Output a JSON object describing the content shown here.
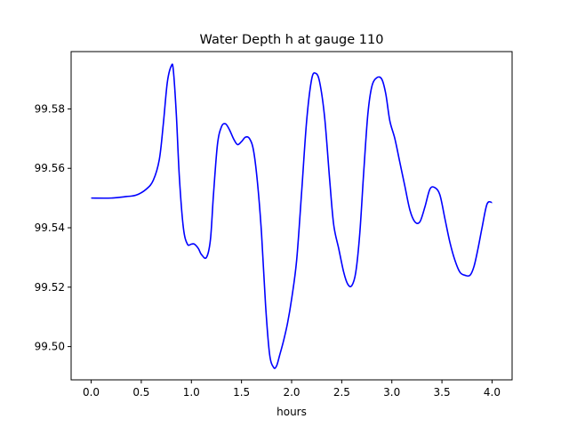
{
  "chart_data": {
    "type": "line",
    "title": "Water Depth h at gauge 110",
    "xlabel": "hours",
    "ylabel": "",
    "xlim": [
      -0.2,
      4.2
    ],
    "ylim": [
      99.4888,
      99.5993
    ],
    "x_ticks": [
      0.0,
      0.5,
      1.0,
      1.5,
      2.0,
      2.5,
      3.0,
      3.5,
      4.0
    ],
    "x_tick_labels": [
      "0.0",
      "0.5",
      "1.0",
      "1.5",
      "2.0",
      "2.5",
      "3.0",
      "3.5",
      "4.0"
    ],
    "y_ticks": [
      99.5,
      99.52,
      99.54,
      99.56,
      99.58
    ],
    "y_tick_labels": [
      "99.50",
      "99.52",
      "99.54",
      "99.56",
      "99.58"
    ],
    "grid": false,
    "series": [
      {
        "color": "#0000ff",
        "x": [
          0.0,
          0.2,
          0.35,
          0.45,
          0.55,
          0.62,
          0.68,
          0.72,
          0.76,
          0.8,
          0.82,
          0.85,
          0.88,
          0.92,
          0.96,
          1.0,
          1.03,
          1.07,
          1.1,
          1.15,
          1.19,
          1.22,
          1.26,
          1.3,
          1.34,
          1.38,
          1.42,
          1.46,
          1.5,
          1.54,
          1.58,
          1.62,
          1.66,
          1.7,
          1.74,
          1.78,
          1.82,
          1.85,
          1.88,
          1.92,
          1.96,
          2.0,
          2.05,
          2.1,
          2.15,
          2.2,
          2.24,
          2.28,
          2.33,
          2.38,
          2.42,
          2.47,
          2.52,
          2.56,
          2.6,
          2.64,
          2.68,
          2.72,
          2.76,
          2.8,
          2.85,
          2.9,
          2.94,
          2.98,
          3.03,
          3.08,
          3.13,
          3.18,
          3.23,
          3.28,
          3.33,
          3.38,
          3.43,
          3.48,
          3.53,
          3.58,
          3.63,
          3.68,
          3.73,
          3.78,
          3.82,
          3.86,
          3.9,
          3.95,
          4.0
        ],
        "values": [
          99.55,
          99.55,
          99.5505,
          99.551,
          99.553,
          99.556,
          99.563,
          99.575,
          99.589,
          99.5945,
          99.593,
          99.578,
          99.557,
          99.54,
          99.5345,
          99.5345,
          99.5345,
          99.533,
          99.531,
          99.53,
          99.536,
          99.551,
          99.568,
          99.574,
          99.575,
          99.573,
          99.57,
          99.568,
          99.569,
          99.5705,
          99.57,
          99.566,
          99.555,
          99.538,
          99.514,
          99.4975,
          99.493,
          99.4935,
          99.497,
          99.502,
          99.508,
          99.516,
          99.529,
          99.552,
          99.576,
          99.59,
          99.592,
          99.589,
          99.577,
          99.556,
          99.541,
          99.533,
          99.525,
          99.521,
          99.5205,
          99.525,
          99.538,
          99.559,
          99.578,
          99.5875,
          99.5905,
          99.59,
          99.585,
          99.576,
          99.57,
          99.562,
          99.554,
          99.546,
          99.542,
          99.542,
          99.547,
          99.553,
          99.5535,
          99.551,
          99.543,
          99.535,
          99.529,
          99.525,
          99.524,
          99.524,
          99.527,
          99.533,
          99.54,
          99.548,
          99.5485
        ]
      }
    ]
  }
}
